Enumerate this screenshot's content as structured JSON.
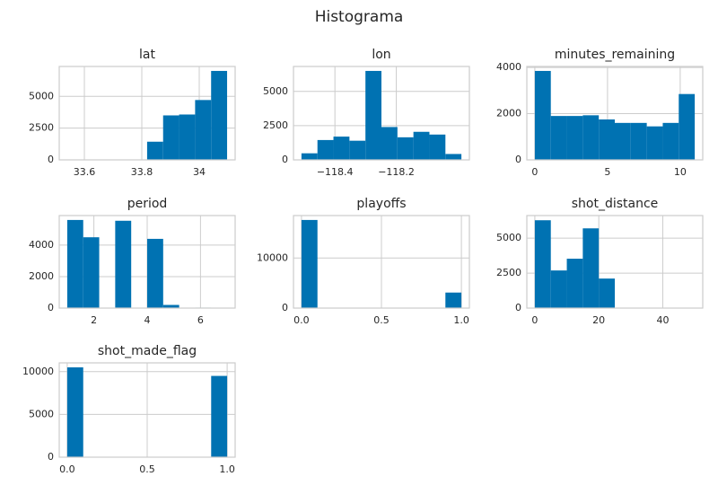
{
  "title": "Histograma",
  "chart_data": [
    {
      "type": "histogram",
      "title": "lat",
      "color": "#0072b2",
      "grid": true,
      "bins": [
        33.54,
        33.5957,
        33.6514,
        33.7071,
        33.7628,
        33.8185,
        33.8742,
        33.9299,
        33.9856,
        34.0413,
        34.097
      ],
      "counts": [
        0,
        0,
        0,
        0,
        0,
        1430,
        3500,
        3570,
        4710,
        7000
      ],
      "xlim": [
        33.5125,
        34.125
      ],
      "ylim": [
        0,
        7350
      ],
      "xticks": [
        33.6,
        33.8,
        34.0
      ],
      "yticks": [
        0,
        2500,
        5000
      ]
    },
    {
      "type": "histogram",
      "title": "lon",
      "color": "#0072b2",
      "grid": true,
      "bins": [
        -118.509,
        -118.4569,
        -118.4048,
        -118.3527,
        -118.3006,
        -118.2485,
        -118.1964,
        -118.1443,
        -118.0922,
        -118.0401,
        -117.988
      ],
      "counts": [
        480,
        1450,
        1700,
        1400,
        6500,
        2400,
        1650,
        2050,
        1850,
        430
      ],
      "xlim": [
        -118.535,
        -117.962
      ],
      "ylim": [
        0,
        6825
      ],
      "xticks": [
        {
          "value": -118.4,
          "label": "−118.4"
        },
        {
          "value": -118.2,
          "label": "−118.2"
        }
      ],
      "yticks": [
        0,
        2500,
        5000
      ]
    },
    {
      "type": "histogram",
      "title": "minutes_remaining",
      "color": "#0072b2",
      "grid": true,
      "bins": [
        0,
        1.1,
        2.2,
        3.3,
        4.4,
        5.5,
        6.6,
        7.7,
        8.8,
        9.9,
        11
      ],
      "counts": [
        3850,
        1900,
        1900,
        1930,
        1750,
        1600,
        1600,
        1450,
        1600,
        2850
      ],
      "xlim": [
        -0.55,
        11.55
      ],
      "ylim": [
        0,
        4043
      ],
      "xticks": [
        0,
        5,
        10
      ],
      "yticks": [
        0,
        2000,
        4000
      ]
    },
    {
      "type": "histogram",
      "title": "period",
      "color": "#0072b2",
      "grid": true,
      "bins": [
        1,
        1.6,
        2.2,
        2.8,
        3.4,
        4,
        4.6,
        5.2,
        5.8,
        6.4,
        7
      ],
      "counts": [
        5600,
        4500,
        0,
        5550,
        0,
        4400,
        200,
        0,
        30,
        7
      ],
      "xlim": [
        0.7,
        7.3
      ],
      "ylim": [
        0,
        5880
      ],
      "xticks": [
        2,
        4,
        6
      ],
      "yticks": [
        0,
        2000,
        4000
      ]
    },
    {
      "type": "histogram",
      "title": "playoffs",
      "color": "#0072b2",
      "grid": true,
      "bins": [
        0,
        0.1,
        0.2,
        0.3,
        0.4,
        0.5,
        0.6,
        0.7,
        0.8,
        0.9,
        1
      ],
      "counts": [
        17600,
        0,
        0,
        0,
        0,
        0,
        0,
        0,
        0,
        3100
      ],
      "xlim": [
        -0.05,
        1.05
      ],
      "ylim": [
        0,
        18480
      ],
      "xticks": [
        {
          "value": 0,
          "label": "0.0"
        },
        0.5,
        {
          "value": 1,
          "label": "1.0"
        }
      ],
      "yticks": [
        0,
        10000
      ]
    },
    {
      "type": "histogram",
      "title": "shot_distance",
      "color": "#0072b2",
      "grid": true,
      "bins": [
        0,
        5,
        10,
        15,
        20,
        25,
        30,
        35,
        40,
        45,
        50
      ],
      "counts": [
        6280,
        2690,
        3530,
        5700,
        2110,
        0,
        0,
        0,
        0,
        0
      ],
      "xlim": [
        -2.5,
        52.5
      ],
      "ylim": [
        0,
        6615
      ],
      "xticks": [
        0,
        20,
        40
      ],
      "yticks": [
        0,
        2500,
        5000
      ]
    },
    {
      "type": "histogram",
      "title": "shot_made_flag",
      "color": "#0072b2",
      "grid": true,
      "bins": [
        0,
        0.1,
        0.2,
        0.3,
        0.4,
        0.5,
        0.6,
        0.7,
        0.8,
        0.9,
        1
      ],
      "counts": [
        10500,
        0,
        0,
        0,
        0,
        0,
        0,
        0,
        0,
        9500
      ],
      "xlim": [
        -0.05,
        1.05
      ],
      "ylim": [
        0,
        11025
      ],
      "xticks": [
        {
          "value": 0,
          "label": "0.0"
        },
        0.5,
        {
          "value": 1,
          "label": "1.0"
        }
      ],
      "yticks": [
        0,
        5000,
        10000
      ]
    }
  ]
}
